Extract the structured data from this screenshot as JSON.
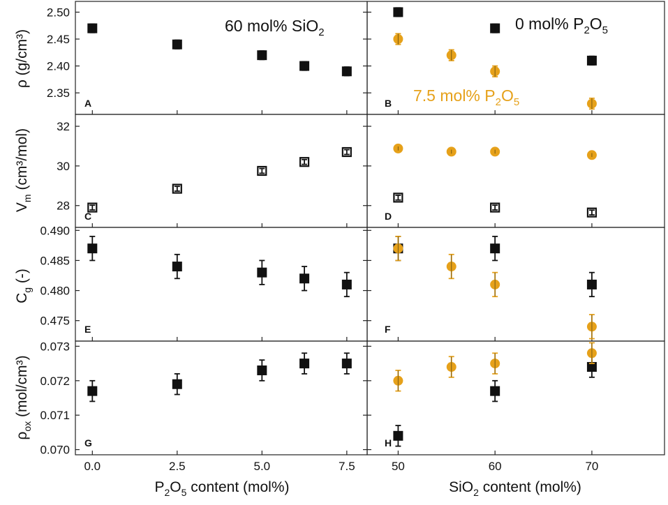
{
  "chart_data": {
    "type": "scatter",
    "colors": {
      "series_0p2o5": "#111111",
      "series_7p5p2o5": "#E6A11A",
      "axis": "#222222"
    },
    "rows": [
      {
        "id": "rho",
        "ylabel_html": "ρ (g/cm³)",
        "ylim": [
          2.31,
          2.52
        ],
        "yticks": [
          "2.35",
          "2.40",
          "2.45",
          "2.50"
        ],
        "ytick_values": [
          2.35,
          2.4,
          2.45,
          2.5
        ]
      },
      {
        "id": "vm",
        "ylim": [
          26.9,
          32.6
        ],
        "yticks": [
          "28",
          "30",
          "32"
        ],
        "ytick_values": [
          28,
          30,
          32
        ]
      },
      {
        "id": "cg",
        "ylim": [
          0.4716,
          0.4905
        ],
        "yticks": [
          "0.475",
          "0.480",
          "0.485",
          "0.490"
        ],
        "ytick_values": [
          0.475,
          0.48,
          0.485,
          0.49
        ]
      },
      {
        "id": "rhoox",
        "ylim": [
          0.06985,
          0.07315
        ],
        "yticks": [
          "0.070",
          "0.071",
          "0.072",
          "0.073"
        ],
        "ytick_values": [
          0.07,
          0.071,
          0.072,
          0.073
        ]
      }
    ],
    "columns": [
      {
        "id": "left",
        "xlim": [
          -0.5,
          8.1
        ],
        "xticks": [
          "0.0",
          "2.5",
          "5.0",
          "7.5"
        ],
        "xtick_values": [
          0.0,
          2.5,
          5.0,
          7.5
        ]
      },
      {
        "id": "right",
        "xlim": [
          46.8,
          77.5
        ],
        "xticks": [
          "50",
          "60",
          "70"
        ],
        "xtick_values": [
          50,
          60,
          70
        ]
      }
    ],
    "panels": [
      {
        "id": "A",
        "row": 0,
        "col": 0,
        "letter": "A",
        "series": [
          {
            "name": "60 mol% SiO2",
            "marker": "square",
            "color": "#111111",
            "x": [
              0.0,
              2.5,
              5.0,
              6.25,
              7.5
            ],
            "y": [
              2.47,
              2.44,
              2.42,
              2.4,
              2.39
            ],
            "err": [
              0.008,
              0.008,
              0.008,
              0.008,
              0.008
            ]
          }
        ]
      },
      {
        "id": "B",
        "row": 0,
        "col": 1,
        "letter": "B",
        "series": [
          {
            "name": "0 mol% P2O5",
            "marker": "square",
            "color": "#111111",
            "x": [
              50,
              60,
              70
            ],
            "y": [
              2.5,
              2.47,
              2.41
            ],
            "err": [
              0.008,
              0.008,
              0.008
            ]
          },
          {
            "name": "7.5 mol% P2O5",
            "marker": "circle",
            "color": "#E6A11A",
            "x": [
              50,
              55.5,
              60,
              70
            ],
            "y": [
              2.45,
              2.42,
              2.39,
              2.33
            ],
            "err": [
              0.01,
              0.01,
              0.01,
              0.01
            ]
          }
        ]
      },
      {
        "id": "C",
        "row": 1,
        "col": 0,
        "letter": "C",
        "series": [
          {
            "name": "60 mol% SiO2",
            "marker": "open-square",
            "color": "#111111",
            "x": [
              0.0,
              2.5,
              5.0,
              6.25,
              7.5
            ],
            "y": [
              27.9,
              28.85,
              29.75,
              30.2,
              30.7
            ],
            "err": [
              0.12,
              0.12,
              0.12,
              0.12,
              0.12
            ]
          }
        ]
      },
      {
        "id": "D",
        "row": 1,
        "col": 1,
        "letter": "D",
        "series": [
          {
            "name": "0 mol% P2O5",
            "marker": "open-square",
            "color": "#111111",
            "x": [
              50,
              60,
              70
            ],
            "y": [
              28.4,
              27.9,
              27.65
            ],
            "err": [
              0.12,
              0.12,
              0.12
            ]
          },
          {
            "name": "7.5 mol% P2O5",
            "marker": "circle",
            "color": "#E6A11A",
            "x": [
              50,
              55.5,
              60,
              70
            ],
            "y": [
              30.88,
              30.72,
              30.72,
              30.55
            ],
            "err": [
              0.1,
              0.1,
              0.1,
              0.1
            ]
          }
        ]
      },
      {
        "id": "E",
        "row": 2,
        "col": 0,
        "letter": "E",
        "series": [
          {
            "name": "60 mol% SiO2",
            "marker": "square",
            "color": "#111111",
            "x": [
              0.0,
              2.5,
              5.0,
              6.25,
              7.5
            ],
            "y": [
              0.487,
              0.484,
              0.483,
              0.482,
              0.481
            ],
            "err": [
              0.002,
              0.002,
              0.002,
              0.002,
              0.002
            ]
          }
        ]
      },
      {
        "id": "F",
        "row": 2,
        "col": 1,
        "letter": "F",
        "series": [
          {
            "name": "0 mol% P2O5",
            "marker": "square",
            "color": "#111111",
            "x": [
              50,
              60,
              70
            ],
            "y": [
              0.487,
              0.487,
              0.481
            ],
            "err": [
              0.002,
              0.002,
              0.002
            ]
          },
          {
            "name": "7.5 mol% P2O5",
            "marker": "circle",
            "color": "#E6A11A",
            "x": [
              50,
              55.5,
              60,
              70
            ],
            "y": [
              0.487,
              0.484,
              0.481,
              0.474
            ],
            "err": [
              0.002,
              0.002,
              0.002,
              0.002
            ]
          }
        ]
      },
      {
        "id": "G",
        "row": 3,
        "col": 0,
        "letter": "G",
        "series": [
          {
            "name": "60 mol% SiO2",
            "marker": "square",
            "color": "#111111",
            "x": [
              0.0,
              2.5,
              5.0,
              6.25,
              7.5
            ],
            "y": [
              0.0717,
              0.0719,
              0.0723,
              0.0725,
              0.0725
            ],
            "err": [
              0.0003,
              0.0003,
              0.0003,
              0.0003,
              0.0003
            ]
          }
        ]
      },
      {
        "id": "H",
        "row": 3,
        "col": 1,
        "letter": "H",
        "series": [
          {
            "name": "0 mol% P2O5",
            "marker": "square",
            "color": "#111111",
            "x": [
              50,
              60,
              70
            ],
            "y": [
              0.0704,
              0.0717,
              0.0724
            ],
            "err": [
              0.0003,
              0.0003,
              0.0003
            ]
          },
          {
            "name": "7.5 mol% P2O5",
            "marker": "circle",
            "color": "#E6A11A",
            "x": [
              50,
              55.5,
              60,
              70
            ],
            "y": [
              0.072,
              0.0724,
              0.0725,
              0.0728
            ],
            "err": [
              0.0003,
              0.0003,
              0.0003,
              0.0003
            ]
          }
        ]
      }
    ],
    "annotations": {
      "a_60sio2": "60 mol% SiO2",
      "b_0p2o5": "0 mol% P2O5",
      "b_75p2o5": "7.5 mol% P2O5"
    },
    "ylabels": {
      "rho": "ρ (g/cm³)",
      "vm": "Vm (cm³/mol)",
      "cg": "Cg (-)",
      "rhoox": "ρox (mol/cm³)"
    },
    "xlabels": {
      "left": "P2O5 content (mol%)",
      "right": "SiO2 content (mol%)"
    }
  }
}
